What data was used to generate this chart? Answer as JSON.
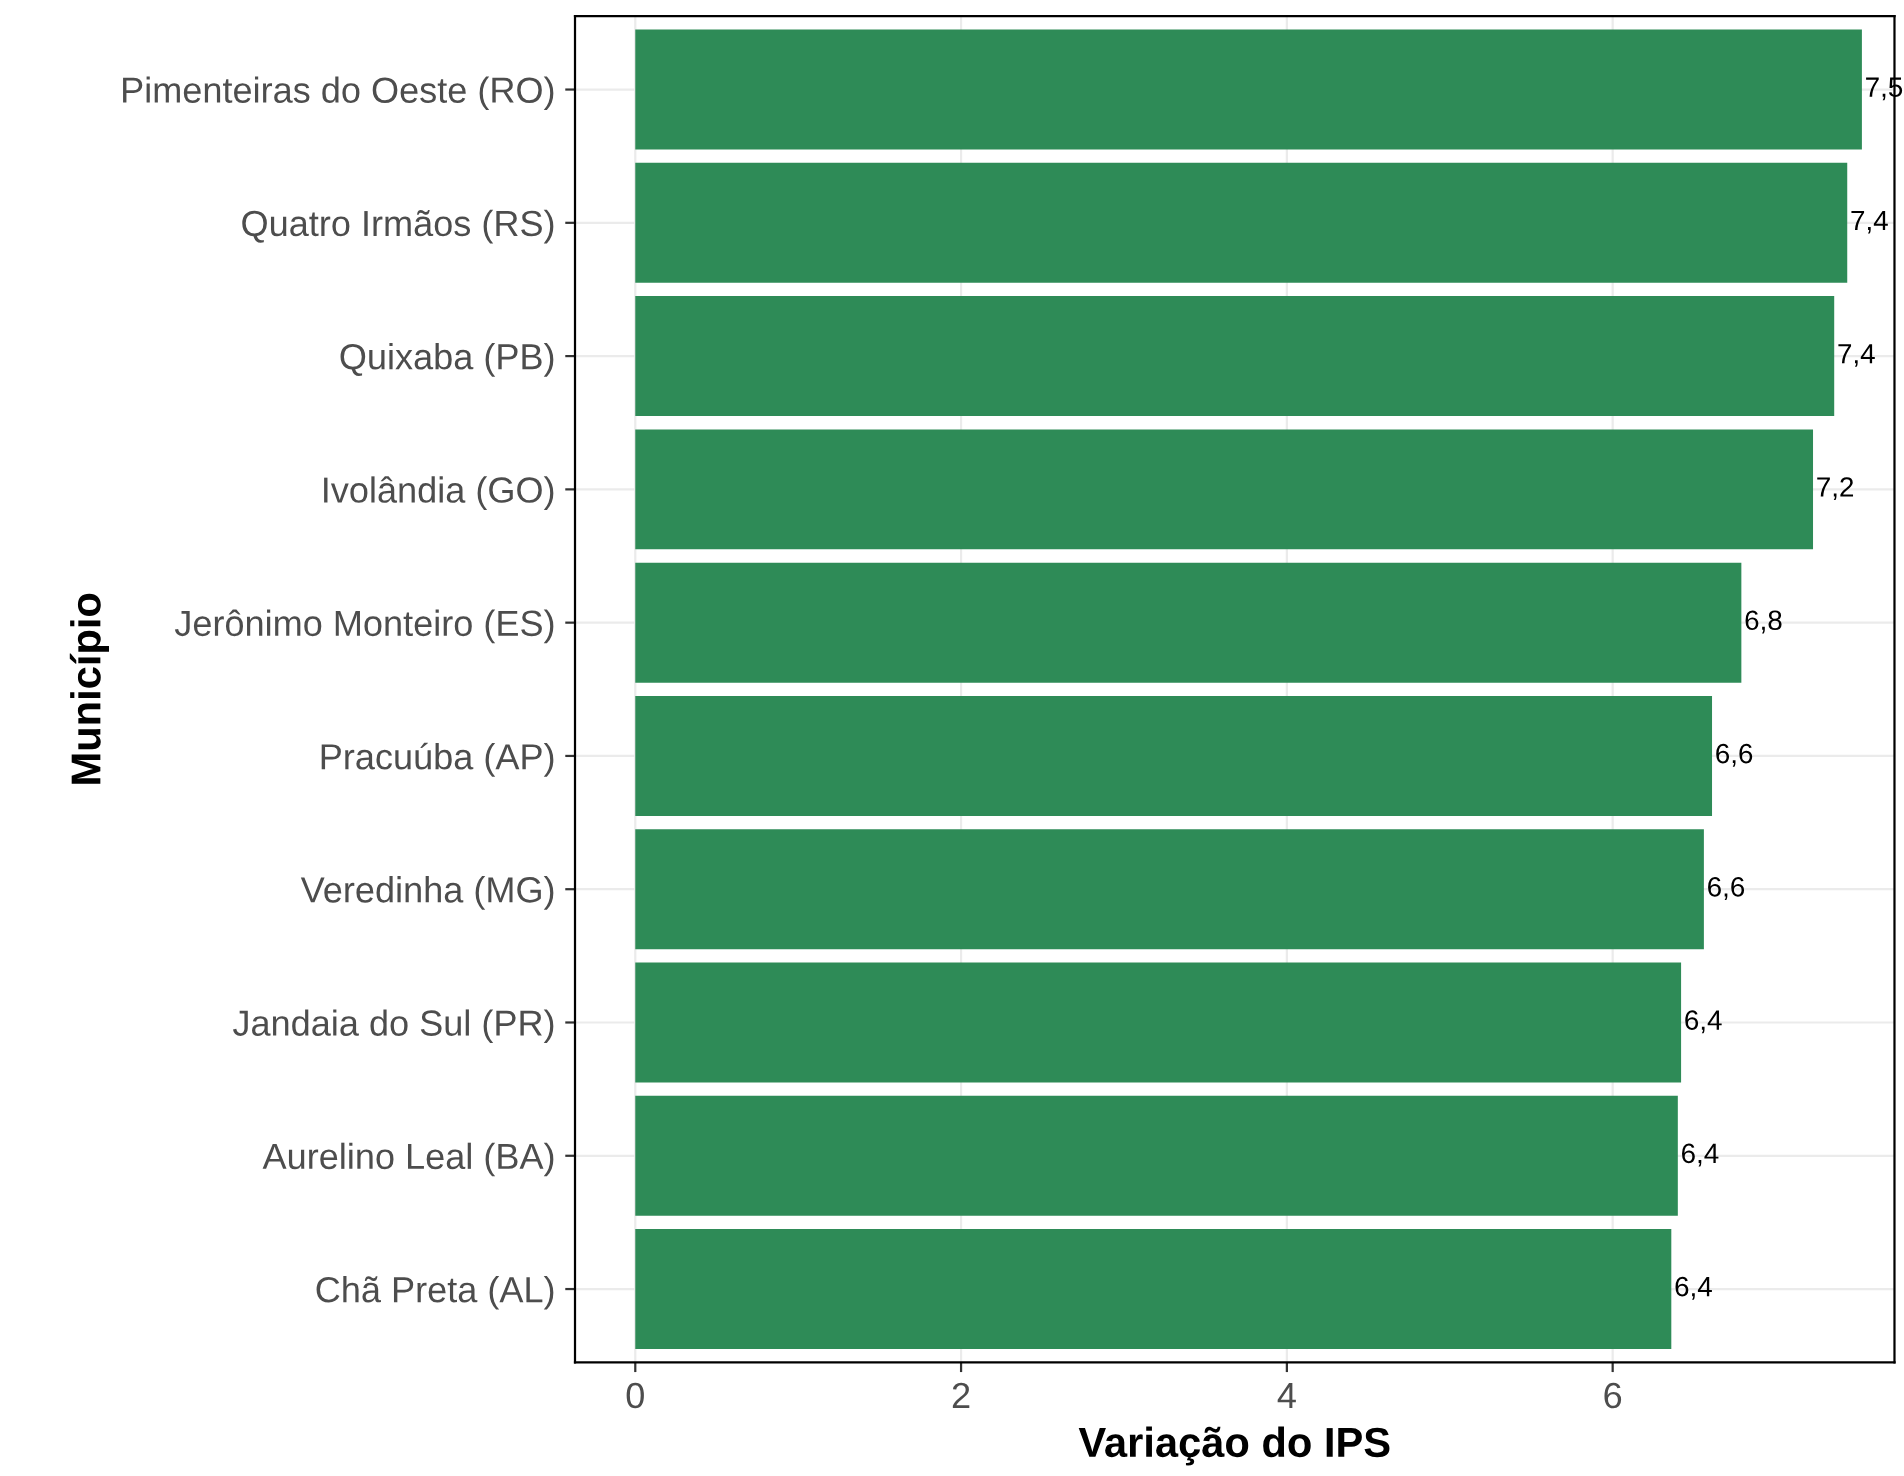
{
  "chart_data": {
    "type": "bar",
    "orientation": "horizontal",
    "xlabel": "Variação do IPS",
    "ylabel": "Município",
    "categories": [
      "Pimenteiras do Oeste (RO)",
      "Quatro Irmãos (RS)",
      "Quixaba (PB)",
      "Ivolândia (GO)",
      "Jerônimo Monteiro (ES)",
      "Pracuúba (AP)",
      "Veredinha (MG)",
      "Jandaia do Sul (PR)",
      "Aurelino Leal (BA)",
      "Chã Preta (AL)"
    ],
    "values": [
      7.53,
      7.44,
      7.36,
      7.23,
      6.79,
      6.61,
      6.56,
      6.42,
      6.4,
      6.36
    ],
    "value_labels": [
      "7,5",
      "7,4",
      "7,4",
      "7,2",
      "6,8",
      "6,6",
      "6,6",
      "6,4",
      "6,4",
      "6,4"
    ],
    "color": "#2e8b57",
    "xlim": [
      -0.37,
      7.73
    ],
    "xticks": [
      0,
      2,
      4,
      6
    ],
    "grid": true
  }
}
